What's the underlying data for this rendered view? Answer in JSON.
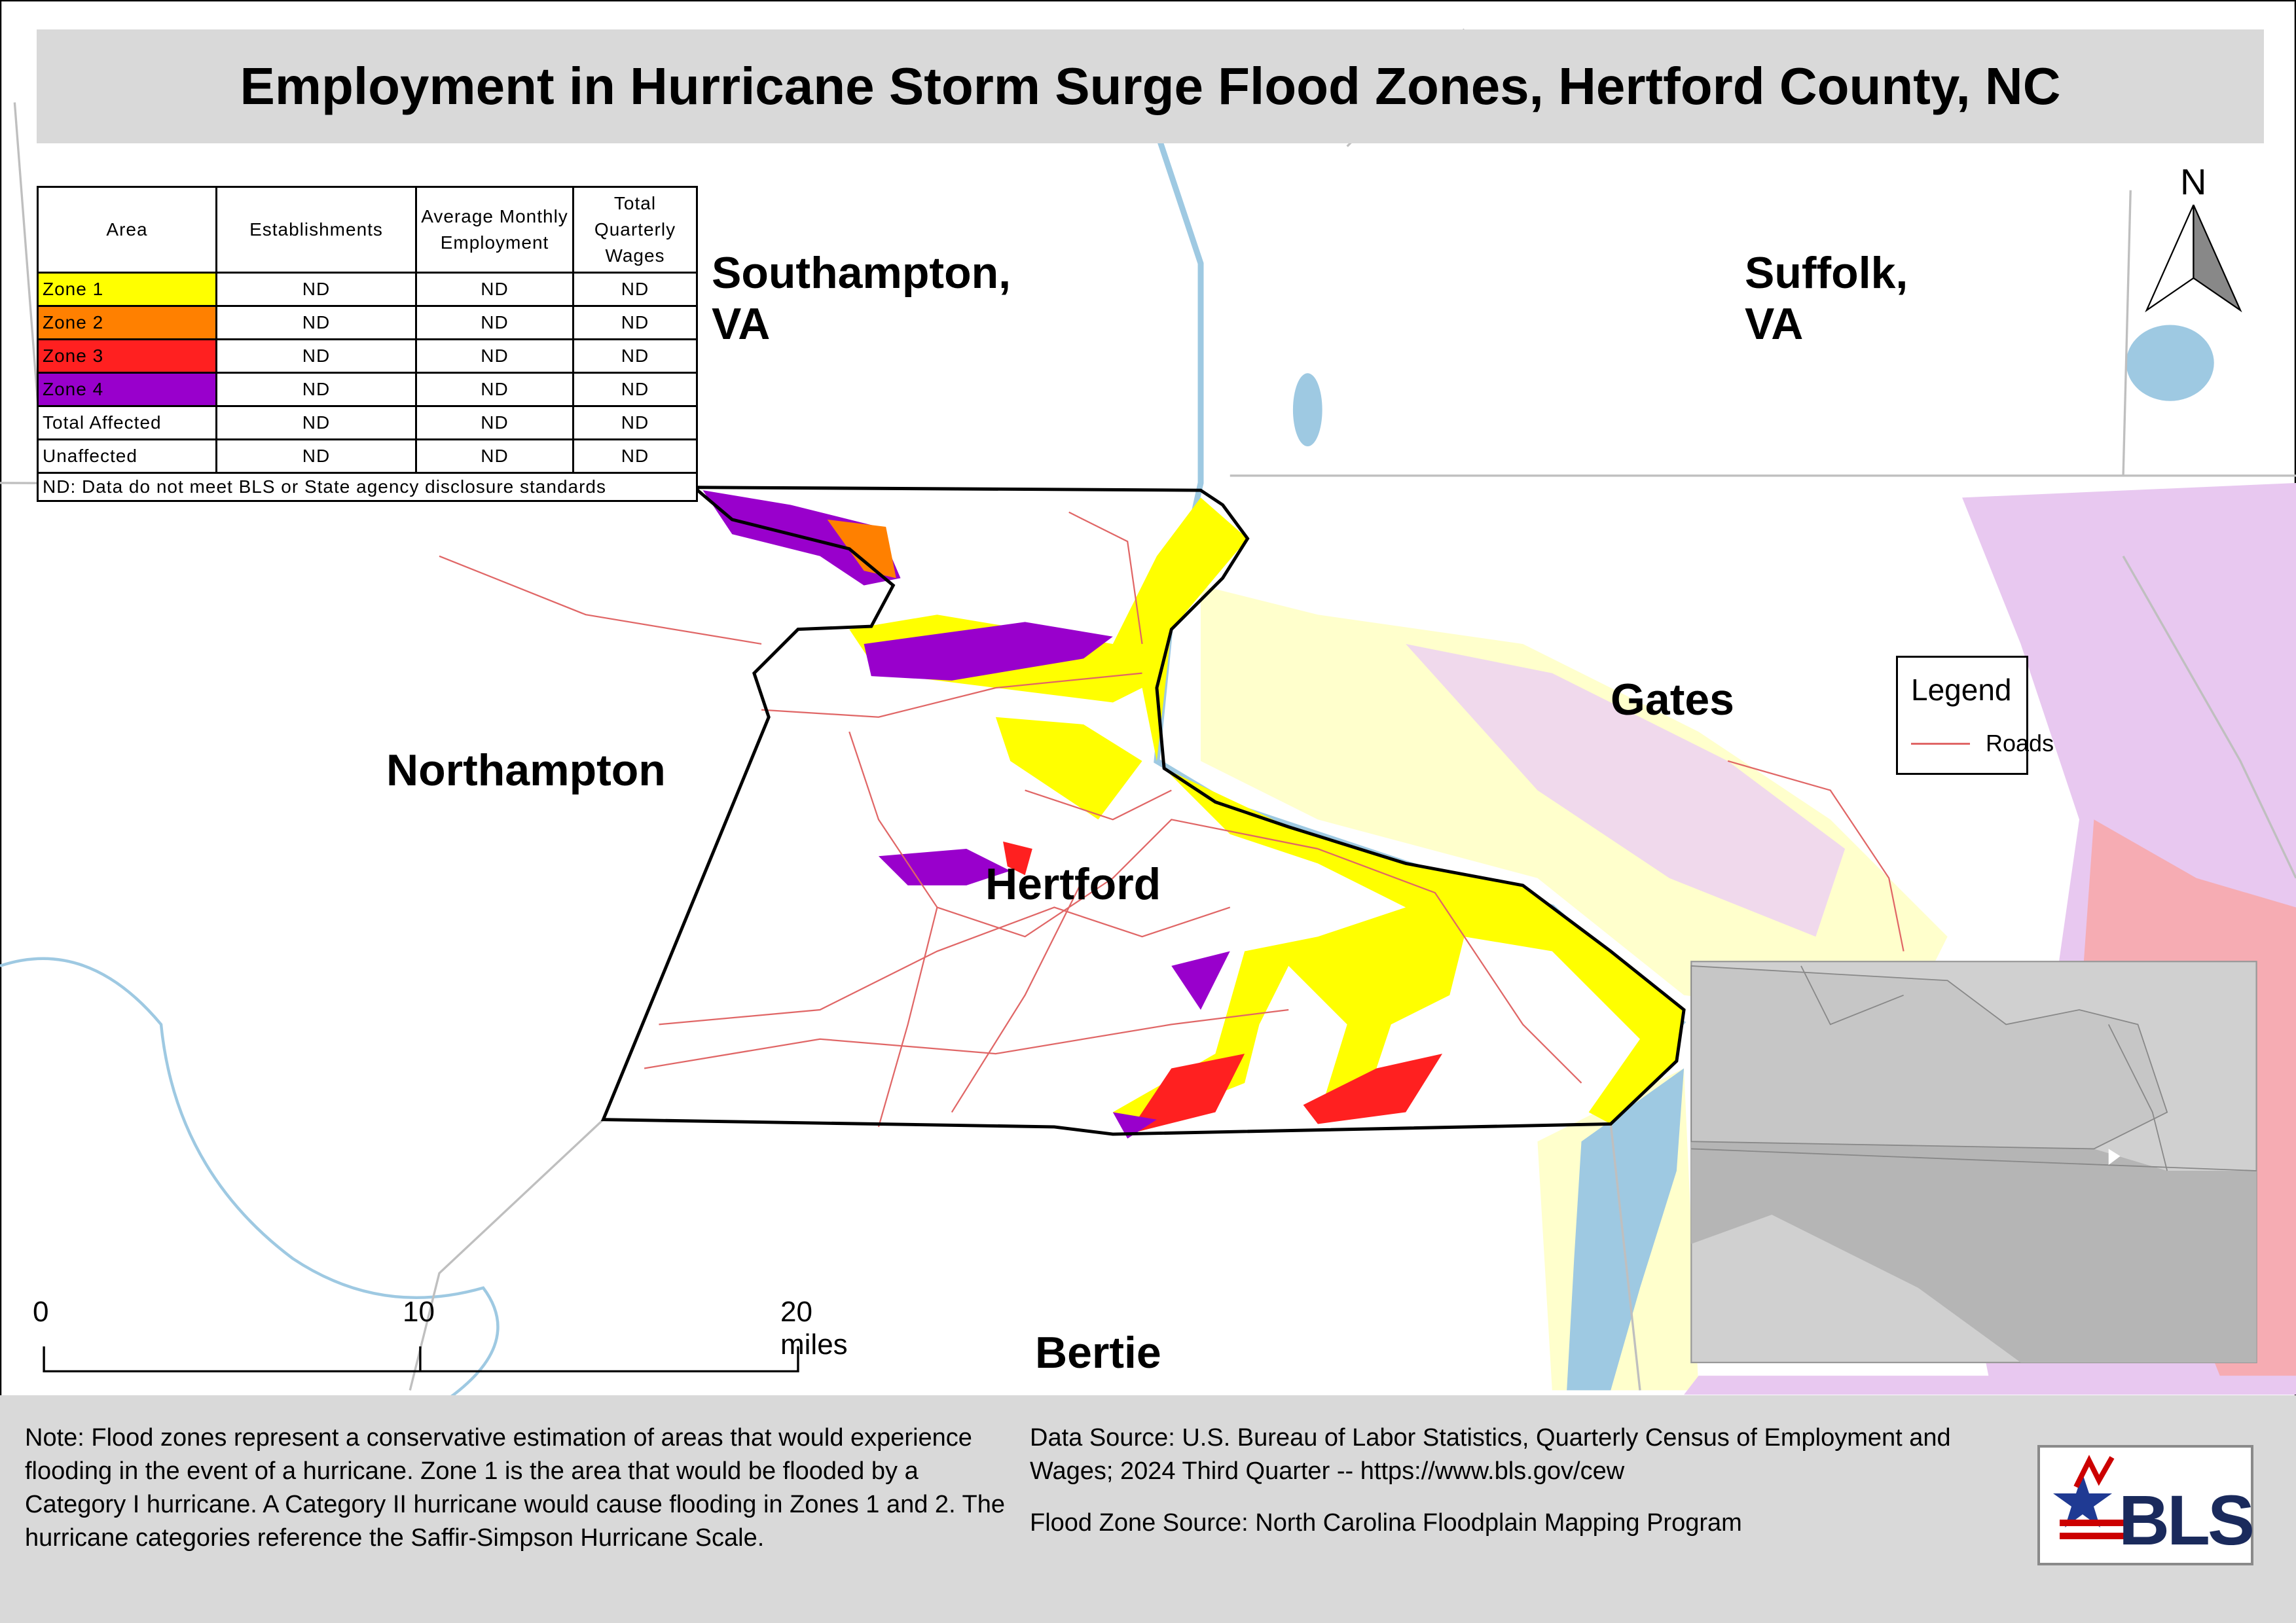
{
  "title": "Employment in Hurricane Storm Surge Flood Zones, Hertford County, NC",
  "table": {
    "headers": [
      "Area",
      "Establishments",
      "Average Monthly Employment",
      "Total Quarterly Wages"
    ],
    "rows": [
      {
        "cells": [
          "Zone 1",
          "ND",
          "ND",
          "ND"
        ],
        "color": "#ffff00"
      },
      {
        "cells": [
          "Zone 2",
          "ND",
          "ND",
          "ND"
        ],
        "color": "#ff8000"
      },
      {
        "cells": [
          "Zone 3",
          "ND",
          "ND",
          "ND"
        ],
        "color": "#ff2020"
      },
      {
        "cells": [
          "Zone 4",
          "ND",
          "ND",
          "ND"
        ],
        "color": "#9900cc"
      },
      {
        "cells": [
          "Total Affected",
          "ND",
          "ND",
          "ND"
        ]
      },
      {
        "cells": [
          "Unaffected",
          "ND",
          "ND",
          "ND"
        ]
      }
    ],
    "note": "ND: Data do not meet BLS or State agency disclosure standards"
  },
  "places": {
    "southampton": [
      "Southampton,",
      "VA"
    ],
    "suffolk": [
      "Suffolk,",
      "VA"
    ],
    "gates": "Gates",
    "northampton": "Northampton",
    "hertford": "Hertford",
    "bertie": "Bertie"
  },
  "north": "N",
  "legend": {
    "title": "Legend",
    "items": [
      {
        "label": "Roads",
        "color": "#e06666"
      }
    ]
  },
  "scale_bar": [
    "0",
    "10",
    "20 miles"
  ],
  "notes": {
    "flood_note": "Note: Flood zones represent a conservative estimation of areas that would experience flooding in the event of a hurricane. Zone 1 is the area that would be flooded by a Category I hurricane. A Category II hurricane would cause flooding in Zones 1 and 2. The hurricane categories reference the Saffir-Simpson Hurricane Scale.",
    "data_source": "Data Source: U.S. Bureau of Labor Statistics, Quarterly Census of Employment and Wages; 2024 Third Quarter -- https://www.bls.gov/cew",
    "flood_source": "Flood Zone Source: North Carolina Floodplain Mapping Program"
  },
  "logo": "BLS"
}
